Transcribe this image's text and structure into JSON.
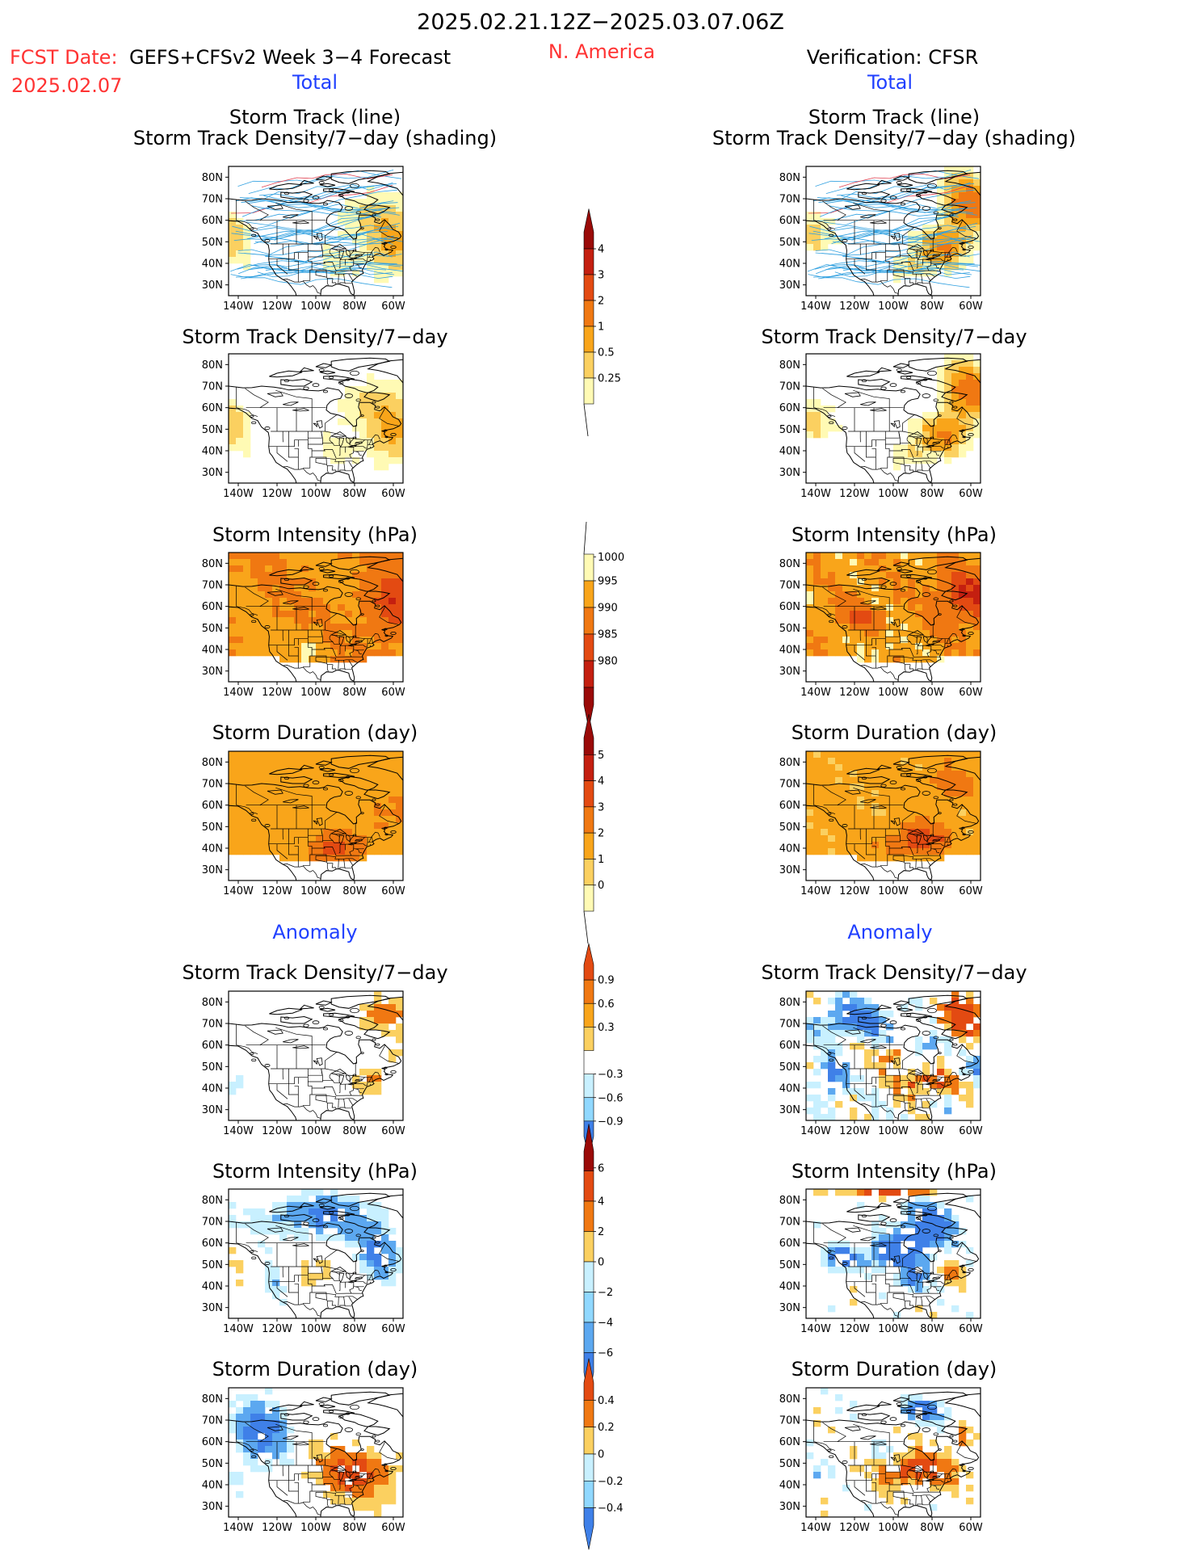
{
  "header": {
    "date_range": "2025.02.21.12Z−2025.03.07.06Z",
    "fcst_label": "FCST Date:",
    "fcst_date": "2025.02.07",
    "model": "GEFS+CFSv2 Week 3−4 Forecast",
    "region": "N. America",
    "verification": "Verification: CFSR"
  },
  "sections": {
    "total_left": "Total",
    "total_right": "Total",
    "anomaly_left": "Anomaly",
    "anomaly_right": "Anomaly"
  },
  "panel_titles": {
    "track_line": "Storm Track (line)",
    "track_shading": "Storm Track Density/7−day (shading)",
    "density": "Storm Track Density/7−day",
    "intensity": "Storm Intensity (hPa)",
    "duration": "Storm Duration (day)"
  },
  "map_axes": {
    "lat_ticks": [
      "80N",
      "70N",
      "60N",
      "50N",
      "40N",
      "30N"
    ],
    "lon_ticks": [
      "140W",
      "120W",
      "100W",
      "80W",
      "60W"
    ]
  },
  "colorbars": {
    "density_total": [
      "4",
      "3",
      "2",
      "1",
      "0.5",
      "0.25"
    ],
    "intensity_total": [
      "1000",
      "995",
      "990",
      "985",
      "980"
    ],
    "duration_total": [
      "5",
      "4",
      "3",
      "2",
      "1",
      "0"
    ],
    "density_anom": [
      "0.9",
      "0.6",
      "0.3",
      "−0.3",
      "−0.6",
      "−0.9"
    ],
    "intensity_anom": [
      "6",
      "4",
      "2",
      "0",
      "−2",
      "−4",
      "−6"
    ],
    "duration_anom": [
      "0.4",
      "0.2",
      "0",
      "−0.2",
      "−0.4"
    ]
  },
  "colors": {
    "title_red": "#ff3333",
    "section_blue": "#2040ff",
    "warm": [
      "#fffab4",
      "#fbd060",
      "#f9a51a",
      "#f07812",
      "#e34a12",
      "#c41f10",
      "#9a0a08"
    ],
    "cool": [
      "#c8f0ff",
      "#90d8ff",
      "#5ca8f0",
      "#3f80e8",
      "#2050c8"
    ]
  },
  "chart_data": {
    "type": "heatmap",
    "title": "2025.02.21.12Z−2025.03.07.06Z",
    "panels": [
      {
        "column": "GEFS+CFSv2 Week 3−4 Forecast",
        "section": "Total",
        "variable": "Storm Track (line) / Storm Track Density/7−day (shading)",
        "scale": [
          "0.25",
          "0.5",
          "1",
          "2",
          "3",
          "4"
        ]
      },
      {
        "column": "Verification: CFSR",
        "section": "Total",
        "variable": "Storm Track (line) / Storm Track Density/7−day (shading)",
        "scale": [
          "0.25",
          "0.5",
          "1",
          "2",
          "3",
          "4"
        ]
      },
      {
        "column": "GEFS+CFSv2 Week 3−4 Forecast",
        "section": "Total",
        "variable": "Storm Track Density/7−day",
        "scale": [
          "0.25",
          "0.5",
          "1",
          "2",
          "3",
          "4"
        ]
      },
      {
        "column": "Verification: CFSR",
        "section": "Total",
        "variable": "Storm Track Density/7−day",
        "scale": [
          "0.25",
          "0.5",
          "1",
          "2",
          "3",
          "4"
        ]
      },
      {
        "column": "GEFS+CFSv2 Week 3−4 Forecast",
        "section": "Total",
        "variable": "Storm Intensity (hPa)",
        "scale": [
          "980",
          "985",
          "990",
          "995",
          "1000"
        ]
      },
      {
        "column": "Verification: CFSR",
        "section": "Total",
        "variable": "Storm Intensity (hPa)",
        "scale": [
          "980",
          "985",
          "990",
          "995",
          "1000"
        ]
      },
      {
        "column": "GEFS+CFSv2 Week 3−4 Forecast",
        "section": "Total",
        "variable": "Storm Duration (day)",
        "scale": [
          "0",
          "1",
          "2",
          "3",
          "4",
          "5"
        ]
      },
      {
        "column": "Verification: CFSR",
        "section": "Total",
        "variable": "Storm Duration (day)",
        "scale": [
          "0",
          "1",
          "2",
          "3",
          "4",
          "5"
        ]
      },
      {
        "column": "GEFS+CFSv2 Week 3−4 Forecast",
        "section": "Anomaly",
        "variable": "Storm Track Density/7−day",
        "scale": [
          "−0.9",
          "−0.6",
          "−0.3",
          "0.3",
          "0.6",
          "0.9"
        ]
      },
      {
        "column": "Verification: CFSR",
        "section": "Anomaly",
        "variable": "Storm Track Density/7−day",
        "scale": [
          "−0.9",
          "−0.6",
          "−0.3",
          "0.3",
          "0.6",
          "0.9"
        ]
      },
      {
        "column": "GEFS+CFSv2 Week 3−4 Forecast",
        "section": "Anomaly",
        "variable": "Storm Intensity (hPa)",
        "scale": [
          "−6",
          "−4",
          "−2",
          "0",
          "2",
          "4",
          "6"
        ]
      },
      {
        "column": "Verification: CFSR",
        "section": "Anomaly",
        "variable": "Storm Intensity (hPa)",
        "scale": [
          "−6",
          "−4",
          "−2",
          "0",
          "2",
          "4",
          "6"
        ]
      },
      {
        "column": "GEFS+CFSv2 Week 3−4 Forecast",
        "section": "Anomaly",
        "variable": "Storm Duration (day)",
        "scale": [
          "−0.4",
          "−0.2",
          "0",
          "0.2",
          "0.4"
        ]
      },
      {
        "column": "Verification: CFSR",
        "section": "Anomaly",
        "variable": "Storm Duration (day)",
        "scale": [
          "−0.4",
          "−0.2",
          "0",
          "0.2",
          "0.4"
        ]
      }
    ],
    "x_ticks": [
      "140W",
      "120W",
      "100W",
      "80W",
      "60W"
    ],
    "y_ticks": [
      "30N",
      "40N",
      "50N",
      "60N",
      "70N",
      "80N"
    ],
    "grid": false
  }
}
